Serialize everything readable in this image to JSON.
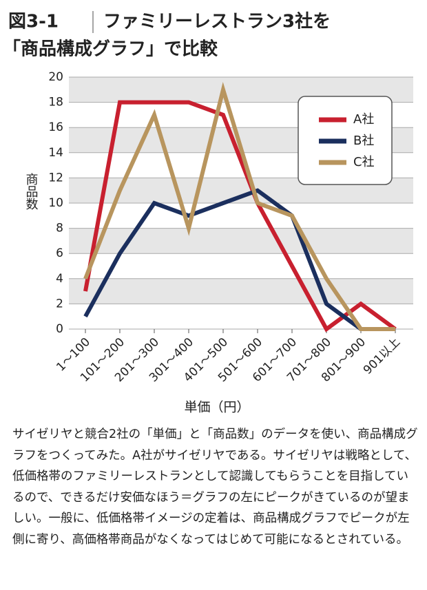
{
  "chart_data": {
    "type": "line",
    "figure_number": "図3-1",
    "title_lines": [
      "ファミリーレストラン3社を",
      "「商品構成グラフ」で比較"
    ],
    "y_label": "商品数",
    "x_label": "単価（円）",
    "categories": [
      "1～100",
      "101～200",
      "201～300",
      "301～400",
      "401～500",
      "501～600",
      "601～700",
      "701～800",
      "801～900",
      "901以上"
    ],
    "series": [
      {
        "name": "A社",
        "color": "#c8202f",
        "values": [
          3,
          18,
          18,
          18,
          17,
          10,
          5,
          0,
          2,
          0
        ]
      },
      {
        "name": "B社",
        "color": "#1b2f5e",
        "values": [
          1,
          6,
          10,
          9,
          10,
          11,
          9,
          2,
          0,
          0
        ]
      },
      {
        "name": "C社",
        "color": "#b8955e",
        "values": [
          4,
          11,
          17,
          8,
          19,
          10,
          9,
          4,
          0,
          0
        ]
      }
    ],
    "ylim": [
      0,
      20
    ],
    "yticks": [
      0,
      2,
      4,
      6,
      8,
      10,
      12,
      14,
      16,
      18,
      20
    ],
    "grid": true,
    "legend": "upper right",
    "caption": "サイゼリヤと競合2社の「単価」と「商品数」のデータを使い、商品構成グラフをつくってみた。A社がサイゼリヤである。サイゼリヤは戦略として、低価格帯のファミリーレストランとして認識してもらうことを目指しているので、できるだけ安価なほう＝グラフの左にピークがきているのが望ましい。一般に、低価格帯イメージの定着は、商品構成グラフでピークが左側に寄り、高価格帯商品がなくなってはじめて可能になるとされている。"
  }
}
